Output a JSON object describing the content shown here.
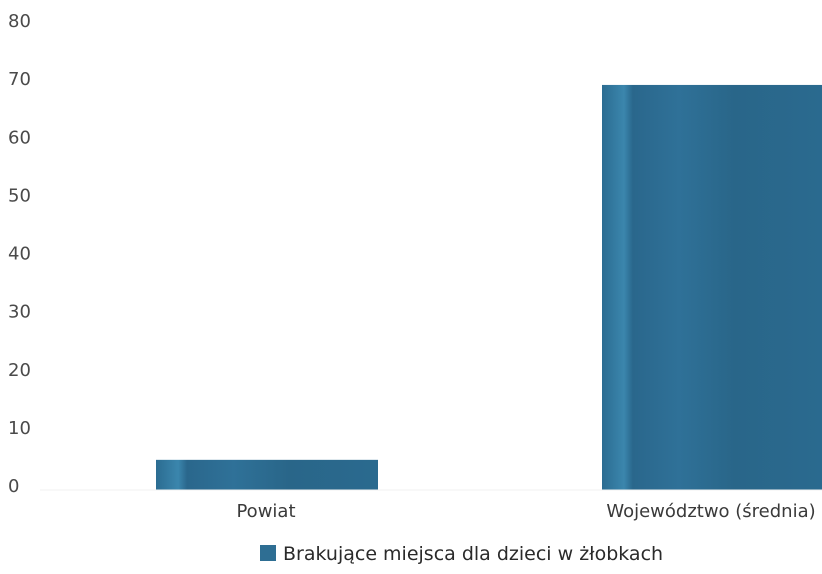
{
  "chart_data": {
    "type": "bar",
    "categories": [
      "Powiat",
      "Województwo (średnia)"
    ],
    "series": [
      {
        "name": "Brakujące miejsca dla dzieci w żłobkach",
        "values": [
          4.5,
          69
        ]
      }
    ],
    "ylim": [
      0,
      80
    ],
    "yticks": [
      0,
      10,
      20,
      30,
      40,
      50,
      60,
      70,
      80
    ],
    "grid": false,
    "legend_position": "bottom-center",
    "bar_color": "#2e6e93"
  }
}
